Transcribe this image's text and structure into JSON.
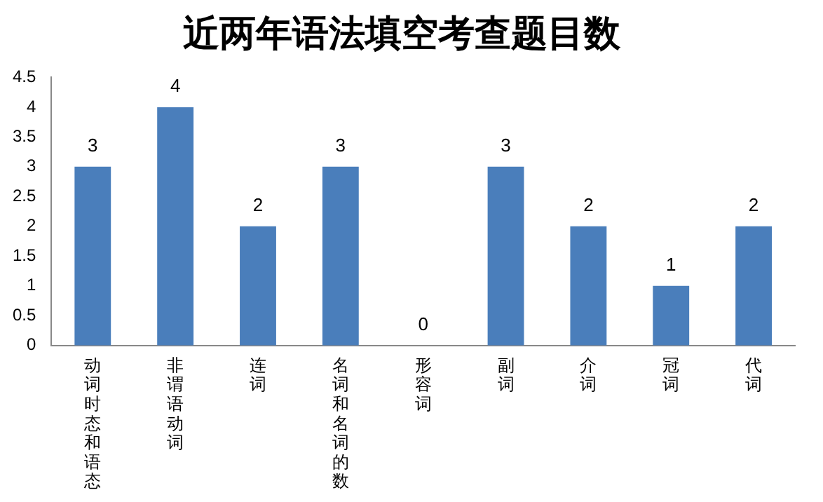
{
  "chart_data": {
    "type": "bar",
    "title": "近两年语法填空考查题目数",
    "categories": [
      "动词时态和语态",
      "非谓语动词",
      "连词",
      "名词和名词的数",
      "形容词",
      "副词",
      "介词",
      "冠词",
      "代词"
    ],
    "values": [
      3,
      4,
      2,
      3,
      0,
      3,
      2,
      1,
      2
    ],
    "color": "#4a7ebb",
    "ylim": [
      0,
      4.5
    ],
    "yticks": [
      0,
      0.5,
      1,
      1.5,
      2,
      2.5,
      3,
      3.5,
      4,
      4.5
    ],
    "grid": false,
    "data_labels": true,
    "legend": false
  }
}
